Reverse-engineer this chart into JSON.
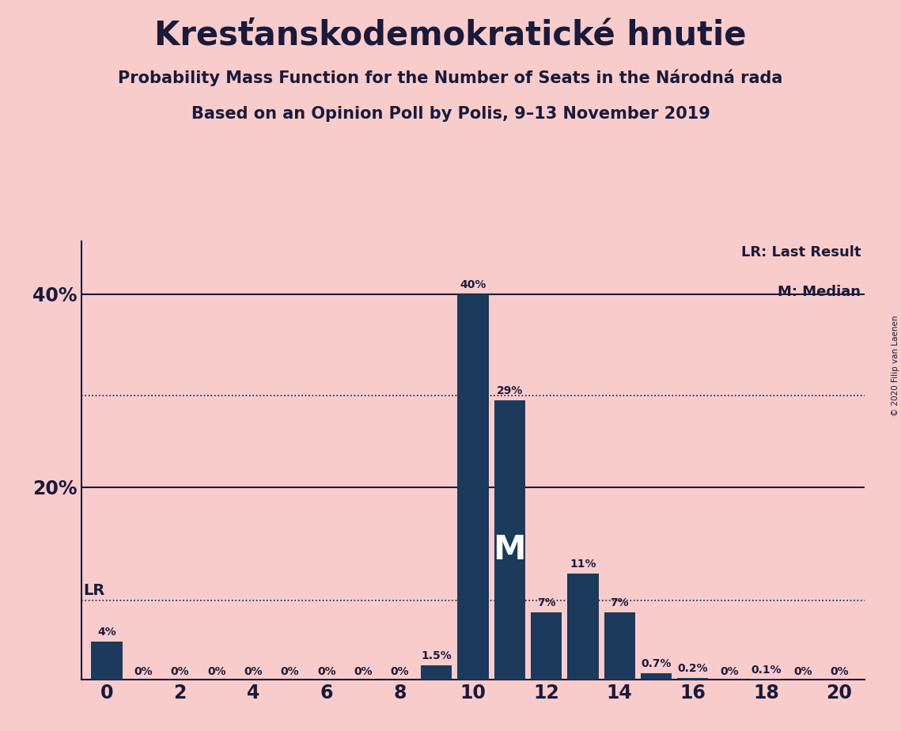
{
  "title": "Kresťanskodemokratické hnutie",
  "subtitle1": "Probability Mass Function for the Number of Seats in the Národná rada",
  "subtitle2": "Based on an Opinion Poll by Polis, 9–13 November 2019",
  "copyright": "© 2020 Filip van Laenen",
  "background_color": "#f9cccc",
  "bar_color": "#1b3a5c",
  "text_color": "#1a1a3a",
  "seats": [
    0,
    1,
    2,
    3,
    4,
    5,
    6,
    7,
    8,
    9,
    10,
    11,
    12,
    13,
    14,
    15,
    16,
    17,
    18,
    19,
    20
  ],
  "probabilities": [
    0.04,
    0.0,
    0.0,
    0.0,
    0.0,
    0.0,
    0.0,
    0.0,
    0.0,
    0.015,
    0.4,
    0.29,
    0.07,
    0.11,
    0.07,
    0.007,
    0.002,
    0.0,
    0.001,
    0.0,
    0.0
  ],
  "labels": [
    "4%",
    "0%",
    "0%",
    "0%",
    "0%",
    "0%",
    "0%",
    "0%",
    "0%",
    "1.5%",
    "40%",
    "29%",
    "7%",
    "11%",
    "7%",
    "0.7%",
    "0.2%",
    "0%",
    "0.1%",
    "0%",
    "0%"
  ],
  "lr_line": 0.082,
  "dotted_line2": 0.295,
  "median_seat": 11,
  "ytick_vals": [
    0.0,
    0.2,
    0.4
  ],
  "ytick_labels": [
    "",
    "20%",
    "40%"
  ],
  "xticks": [
    0,
    2,
    4,
    6,
    8,
    10,
    12,
    14,
    16,
    18,
    20
  ],
  "xlim": [
    -0.7,
    20.7
  ],
  "ylim": [
    0,
    0.455
  ]
}
